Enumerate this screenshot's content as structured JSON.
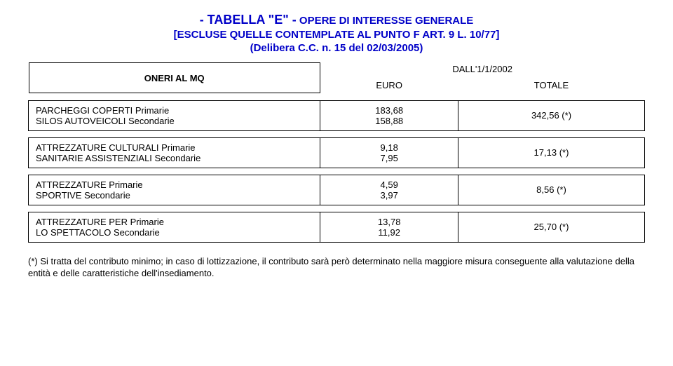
{
  "title": {
    "prefix": "- TABELLA \"E\" -",
    "rest1": " OPERE DI INTERESSE GENERALE",
    "line2": "[ESCLUSE QUELLE CONTEMPLATE AL PUNTO F ART. 9 L. 10/77]",
    "line3": "(Delibera C.C. n. 15 del 02/03/2005)"
  },
  "header": {
    "oneri": "ONERI AL MQ",
    "dall": "DALL'1/1/2002",
    "euro": "EURO",
    "totale": "TOTALE"
  },
  "rows": {
    "r1": {
      "l1": "PARCHEGGI COPERTI Primarie",
      "v1": "183,68",
      "t1": "342,56 (*)",
      "l2": "SILOS AUTOVEICOLI Secondarie",
      "v2": "158,88"
    },
    "r2": {
      "l1": "ATTREZZATURE CULTURALI Primarie",
      "v1": "9,18",
      "t1": "17,13 (*)",
      "l2": "SANITARIE ASSISTENZIALI Secondarie",
      "v2": "7,95"
    },
    "r3": {
      "l1": "ATTREZZATURE Primarie",
      "v1": "4,59",
      "t1": "8,56 (*)",
      "l2": "SPORTIVE Secondarie",
      "v2": "3,97"
    },
    "r4": {
      "l1": "ATTREZZATURE PER Primarie",
      "v1": "13,78",
      "t1": "25,70 (*)",
      "l2": "LO SPETTACOLO Secondarie",
      "v2": "11,92"
    }
  },
  "footnote": "(*) Si tratta del contributo minimo; in caso di lottizzazione, il contributo sarà però determinato nella maggiore misura conseguente alla valutazione della entità e delle caratteristiche dell'insediamento."
}
